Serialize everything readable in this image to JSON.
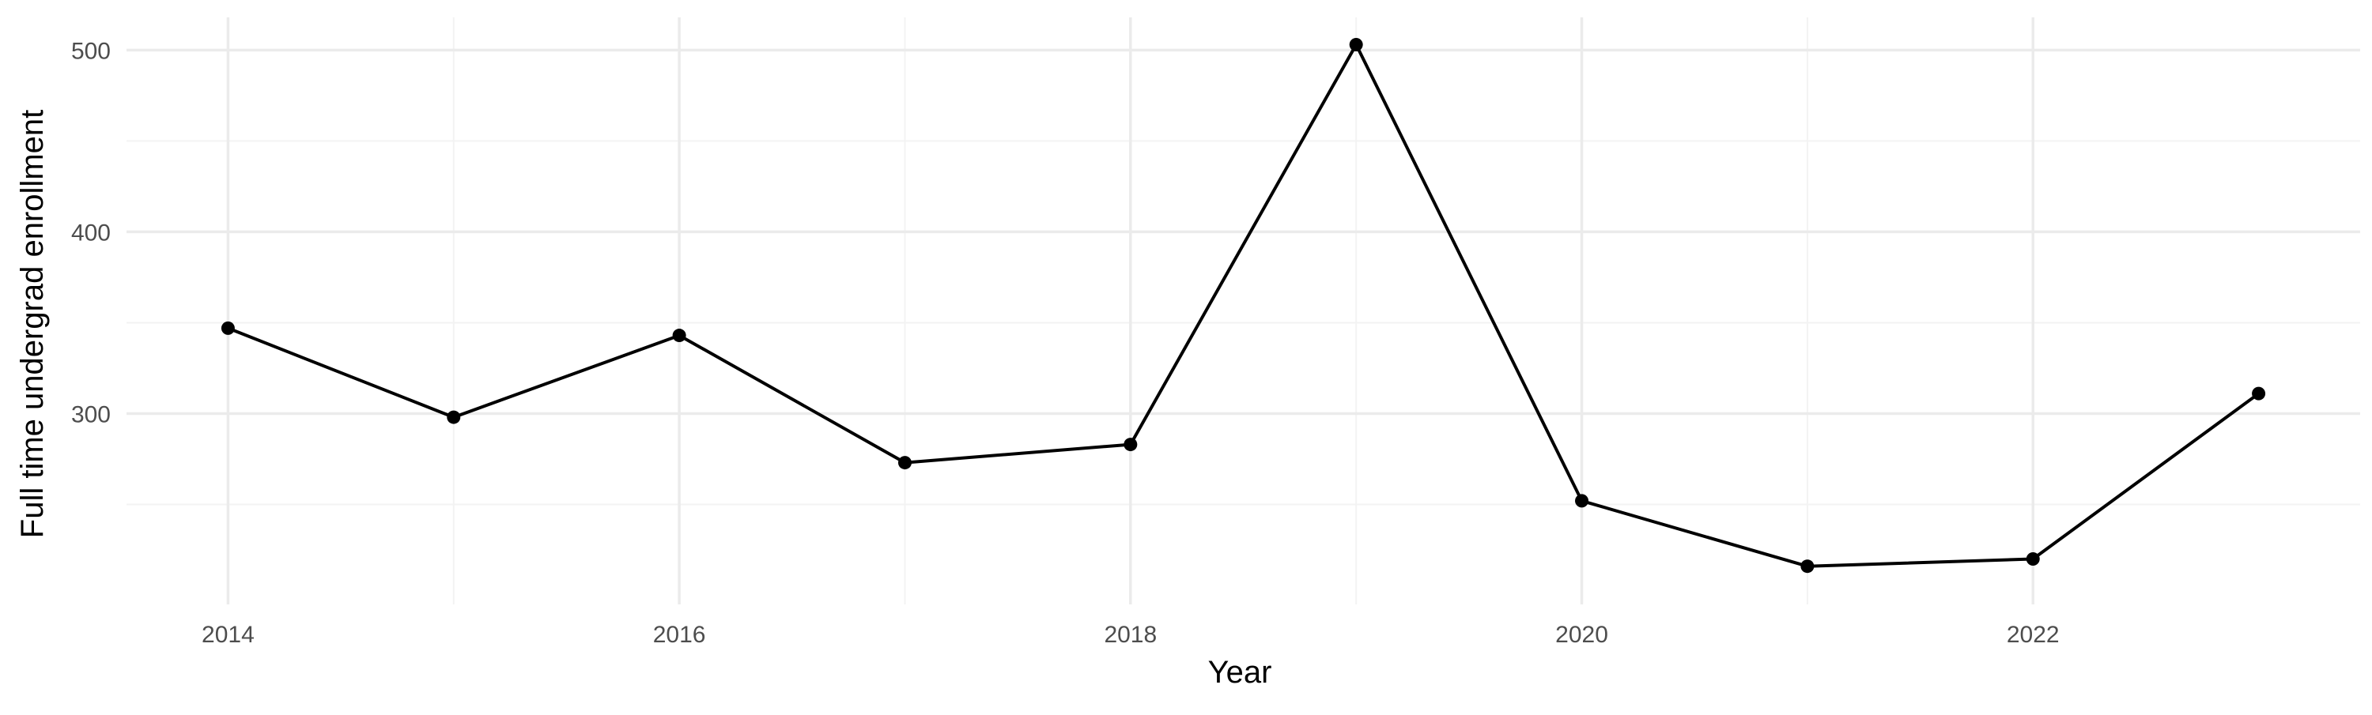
{
  "chart_data": {
    "type": "line",
    "title": "",
    "xlabel": "Year",
    "ylabel": "Full time undergrad enrollment",
    "x": [
      2014,
      2015,
      2016,
      2017,
      2018,
      2019,
      2020,
      2021,
      2022,
      2023
    ],
    "series": [
      {
        "values": [
          347,
          298,
          343,
          273,
          283,
          503,
          252,
          216,
          220,
          311
        ]
      }
    ],
    "xlim": [
      2013.55,
      2023.45
    ],
    "ylim": [
      195,
      518
    ],
    "x_ticks": [
      2014,
      2016,
      2018,
      2020,
      2022
    ],
    "x_tick_labels": [
      "2014",
      "2016",
      "2018",
      "2020",
      "2022"
    ],
    "y_ticks": [
      300,
      400,
      500
    ],
    "y_tick_labels": [
      "300",
      "400",
      "500"
    ],
    "grid": true,
    "legend": "none",
    "colors": {
      "line": "#000000",
      "points": "#000000",
      "grid_major": "#ebebeb",
      "grid_minor": "#f3f3f3",
      "tick_text": "#4d4d4d",
      "background": "#ffffff"
    }
  }
}
